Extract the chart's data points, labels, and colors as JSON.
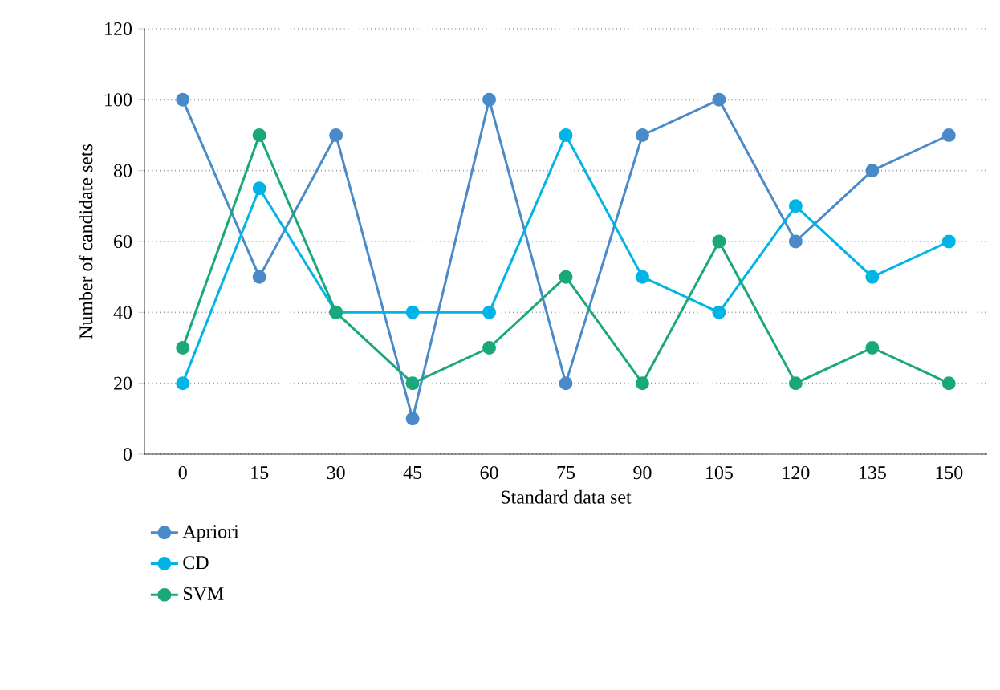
{
  "chart_data": {
    "type": "line",
    "xlabel": "Standard data set",
    "ylabel": "Number of candidate sets",
    "categories": [
      "0",
      "15",
      "30",
      "45",
      "60",
      "75",
      "90",
      "105",
      "120",
      "135",
      "150"
    ],
    "series": [
      {
        "name": "Apriori",
        "color": "#4a8ac9",
        "values": [
          100,
          50,
          90,
          10,
          100,
          20,
          90,
          100,
          60,
          80,
          90
        ]
      },
      {
        "name": "CD",
        "color": "#00b4e6",
        "values": [
          20,
          75,
          40,
          40,
          40,
          90,
          50,
          40,
          70,
          50,
          60
        ]
      },
      {
        "name": "SVM",
        "color": "#1aa87a",
        "values": [
          30,
          90,
          40,
          20,
          30,
          50,
          20,
          60,
          20,
          30,
          20
        ]
      }
    ],
    "ylim": [
      0,
      120
    ],
    "yticks": [
      0,
      20,
      40,
      60,
      80,
      100,
      120
    ],
    "grid": "y",
    "legend": "bottom",
    "marker": "circle",
    "line_style": "solid"
  }
}
